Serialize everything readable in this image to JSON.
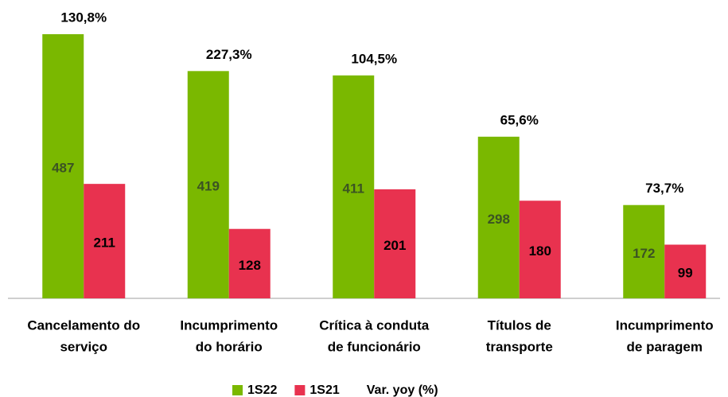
{
  "chart_data": {
    "type": "bar",
    "categories": [
      [
        "Cancelamento do",
        "serviço"
      ],
      [
        "Incumprimento",
        "do horário"
      ],
      [
        "Crítica à conduta",
        "de funcionário"
      ],
      [
        "Títulos de",
        "transporte"
      ],
      [
        "Incumprimento",
        "de paragem"
      ]
    ],
    "series": [
      {
        "name": "1S22",
        "color": "#7ab800",
        "label_color": "#3b5323",
        "values": [
          487,
          419,
          411,
          298,
          172
        ]
      },
      {
        "name": "1S21",
        "color": "#e8324f",
        "label_color": "#000000",
        "values": [
          211,
          128,
          201,
          180,
          99
        ]
      }
    ],
    "annotation_series": {
      "name": "Var. yoy (%)",
      "values": [
        130.8,
        227.3,
        104.5,
        65.6,
        73.7
      ],
      "value_labels": [
        "130,8%",
        "227,3%",
        "104,5%",
        "65,6%",
        "73,7%"
      ]
    },
    "ylim": [
      0,
      550
    ],
    "legend": "bottom"
  }
}
